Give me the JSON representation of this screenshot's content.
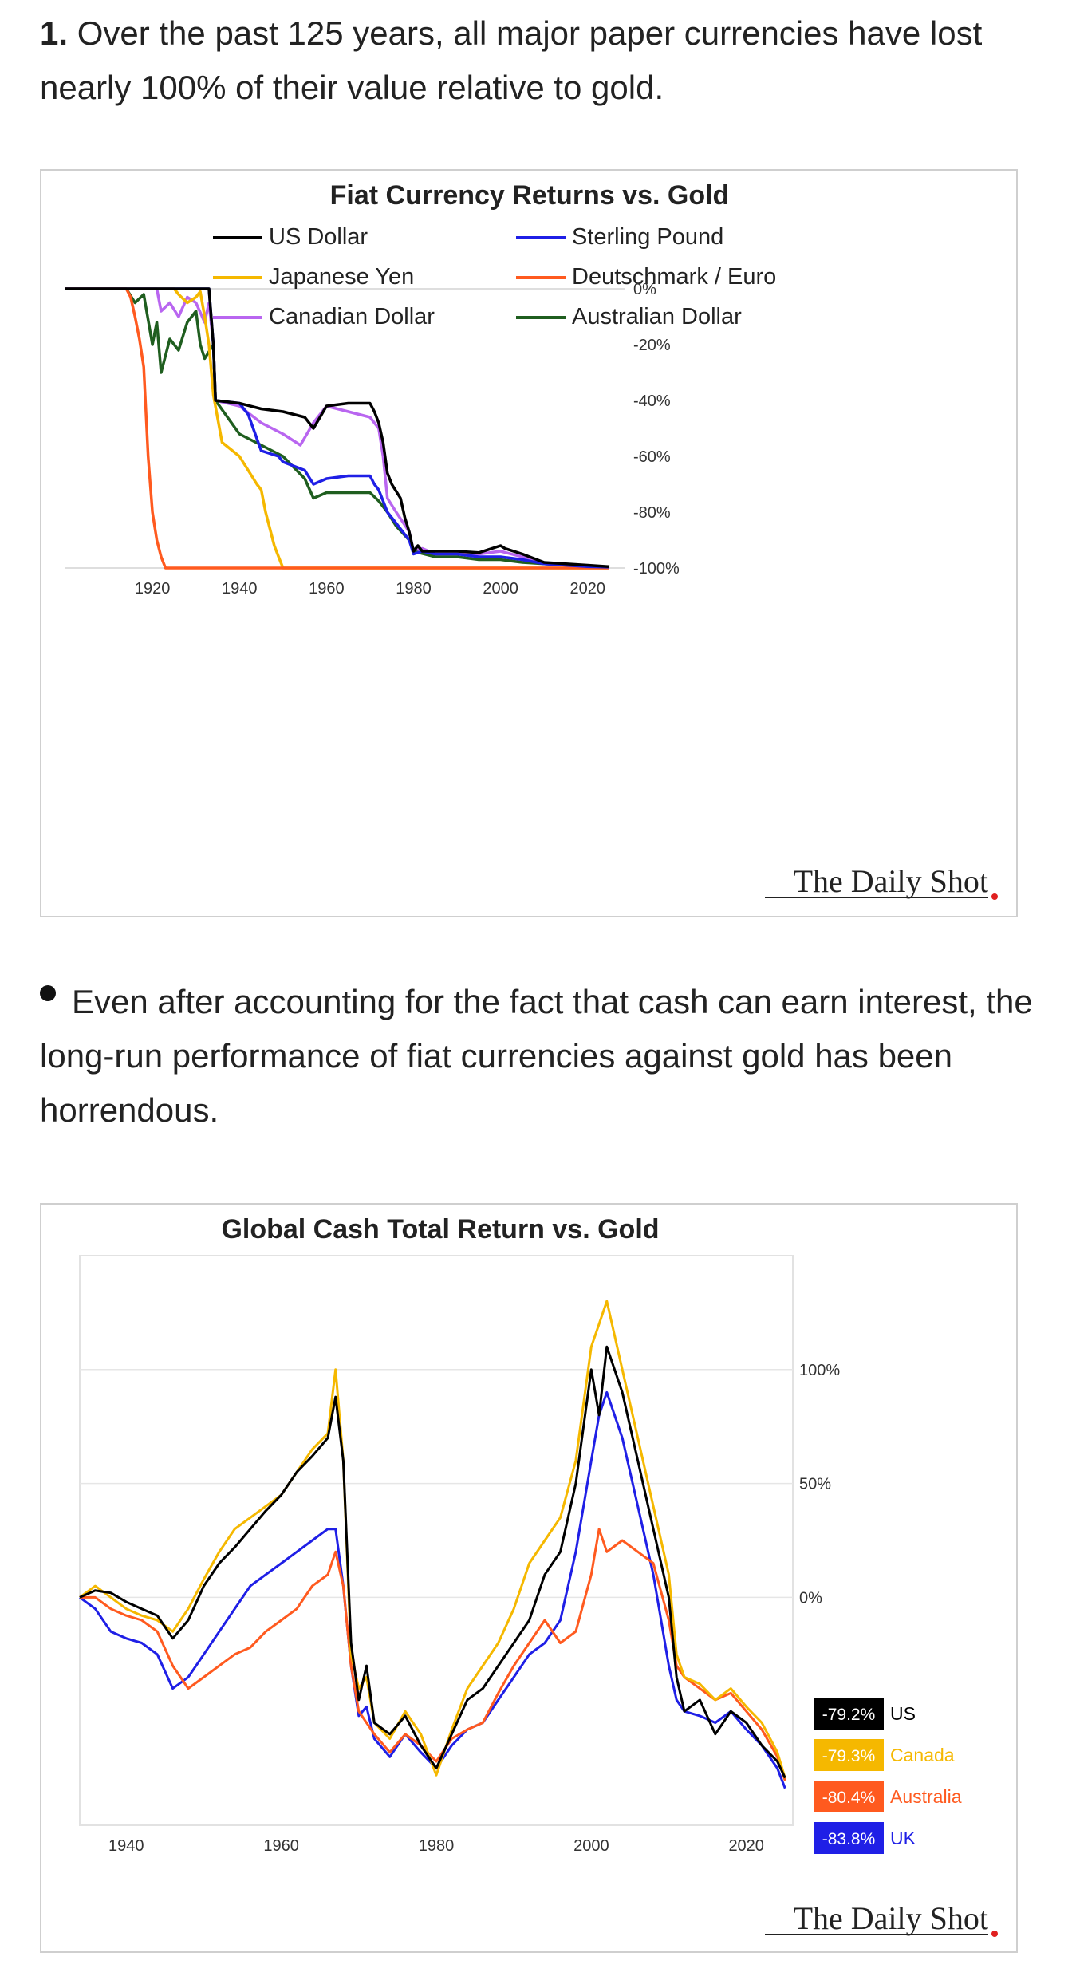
{
  "section1": {
    "number": "1.",
    "text": "Over the past 125 years, all major paper currencies have lost nearly 100% of their value relative to gold."
  },
  "section2": {
    "text": "Even after accounting for the fact that cash can earn interest, the long-run performance of fiat currencies against gold has been horrendous."
  },
  "chart_data": [
    {
      "type": "line",
      "title": "Fiat Currency Returns vs. Gold",
      "legend": [
        {
          "name": "US Dollar",
          "color": "#000000"
        },
        {
          "name": "Sterling Pound",
          "color": "#1f1fe6"
        },
        {
          "name": "Japanese Yen",
          "color": "#f5b800"
        },
        {
          "name": "Deutschmark / Euro",
          "color": "#ff5a1f"
        },
        {
          "name": "Canadian Dollar",
          "color": "#b966f0"
        },
        {
          "name": "Australian Dollar",
          "color": "#1f5e1f"
        }
      ],
      "legend_position": "top",
      "xlim": [
        1900,
        2025
      ],
      "ylim": [
        -100,
        0
      ],
      "x_ticks": [
        "1920",
        "1940",
        "1960",
        "1980",
        "2000",
        "2020"
      ],
      "x_tick_values": [
        1920,
        1940,
        1960,
        1980,
        2000,
        2020
      ],
      "y_ticks": [
        "0%",
        "-20%",
        "-40%",
        "-60%",
        "-80%",
        "-100%"
      ],
      "y_tick_values": [
        0,
        -20,
        -40,
        -60,
        -80,
        -100
      ],
      "y_axis_side": "right",
      "grid": "horizontal",
      "series": [
        {
          "name": "US Dollar",
          "color": "#000000",
          "x": [
            1900,
            1933,
            1934,
            1934.5,
            1940,
            1945,
            1950,
            1955,
            1957,
            1960,
            1965,
            1970,
            1971,
            1972,
            1973,
            1974,
            1975,
            1977,
            1978,
            1979,
            1980,
            1981,
            1982,
            1985,
            1990,
            1995,
            2000,
            2001,
            2005,
            2010,
            2015,
            2020,
            2025
          ],
          "y": [
            0,
            0,
            -20,
            -40,
            -41,
            -43,
            -44,
            -46,
            -50,
            -42,
            -41,
            -41,
            -44,
            -48,
            -55,
            -66,
            -70,
            -75,
            -82,
            -87,
            -94,
            -92,
            -94,
            -94,
            -94,
            -94.5,
            -92,
            -93,
            -95,
            -98,
            -98.5,
            -99,
            -99.5
          ]
        },
        {
          "name": "Sterling Pound",
          "color": "#1f1fe6",
          "x": [
            1900,
            1933,
            1934,
            1934.5,
            1940,
            1942,
            1945,
            1949,
            1950,
            1955,
            1957,
            1960,
            1965,
            1967,
            1970,
            1971,
            1972,
            1973,
            1974,
            1976,
            1979,
            1980,
            1982,
            1985,
            1990,
            1995,
            2000,
            2005,
            2010,
            2015,
            2020,
            2025
          ],
          "y": [
            0,
            0,
            -20,
            -40,
            -41,
            -45,
            -58,
            -60,
            -62,
            -65,
            -70,
            -68,
            -67,
            -67,
            -67,
            -70,
            -72,
            -76,
            -80,
            -84,
            -90,
            -95,
            -94,
            -95,
            -95,
            -96,
            -96,
            -97,
            -98.5,
            -99,
            -99.5,
            -99.7
          ]
        },
        {
          "name": "Japanese Yen",
          "color": "#f5b800",
          "x": [
            1900,
            1925,
            1926,
            1928,
            1930,
            1931,
            1932,
            1933,
            1934,
            1936,
            1940,
            1944,
            1945,
            1946,
            1948,
            1949,
            1950,
            1960,
            1980,
            2000,
            2025
          ],
          "y": [
            0,
            0,
            -2,
            -5,
            -3,
            -1,
            -10,
            -20,
            -38,
            -55,
            -60,
            -70,
            -72,
            -80,
            -92,
            -96,
            -100,
            -100,
            -100,
            -100,
            -100
          ]
        },
        {
          "name": "Deutschmark / Euro",
          "color": "#ff5a1f",
          "x": [
            1900,
            1914,
            1915,
            1916,
            1917,
            1918,
            1919,
            1920,
            1921,
            1922,
            1923,
            1940,
            1960,
            1980,
            2000,
            2025
          ],
          "y": [
            0,
            0,
            -3,
            -10,
            -18,
            -28,
            -60,
            -80,
            -90,
            -96,
            -100,
            -100,
            -100,
            -100,
            -100,
            -100
          ]
        },
        {
          "name": "Canadian Dollar",
          "color": "#b966f0",
          "x": [
            1900,
            1921,
            1922,
            1924,
            1926,
            1928,
            1930,
            1932,
            1933,
            1934,
            1934.5,
            1940,
            1945,
            1950,
            1954,
            1957,
            1960,
            1965,
            1970,
            1972,
            1973,
            1974,
            1976,
            1979,
            1980,
            1982,
            1985,
            1990,
            1995,
            2000,
            2005,
            2010,
            2015,
            2020,
            2025
          ],
          "y": [
            0,
            0,
            -8,
            -5,
            -10,
            -3,
            -5,
            -12,
            -5,
            -20,
            -40,
            -42,
            -48,
            -52,
            -56,
            -48,
            -42,
            -44,
            -46,
            -50,
            -60,
            -75,
            -80,
            -87,
            -94,
            -93,
            -95,
            -95,
            -95,
            -94,
            -96,
            -98,
            -99,
            -99.3,
            -99.6
          ]
        },
        {
          "name": "Australian Dollar",
          "color": "#1f5e1f",
          "x": [
            1900,
            1914,
            1916,
            1918,
            1920,
            1921,
            1922,
            1924,
            1926,
            1928,
            1930,
            1931,
            1932,
            1934,
            1934.5,
            1940,
            1945,
            1950,
            1955,
            1957,
            1960,
            1965,
            1970,
            1972,
            1973,
            1974,
            1976,
            1979,
            1980,
            1985,
            1990,
            1995,
            2000,
            2005,
            2010,
            2015,
            2020,
            2025
          ],
          "y": [
            0,
            0,
            -5,
            -2,
            -20,
            -12,
            -30,
            -18,
            -22,
            -12,
            -8,
            -20,
            -25,
            -20,
            -40,
            -52,
            -56,
            -60,
            -68,
            -75,
            -73,
            -73,
            -73,
            -76,
            -78,
            -80,
            -85,
            -90,
            -94,
            -96,
            -96,
            -97,
            -97,
            -98,
            -98.5,
            -99,
            -99.5,
            -99.8
          ]
        }
      ]
    },
    {
      "type": "line",
      "title": "Global Cash Total Return vs. Gold",
      "xlim": [
        1934,
        2026
      ],
      "ylim": [
        -100,
        150
      ],
      "x_ticks": [
        "1940",
        "1960",
        "1980",
        "2000",
        "2020"
      ],
      "x_tick_values": [
        1940,
        1960,
        1980,
        2000,
        2020
      ],
      "y_ticks": [
        "100%",
        "50%",
        "0%"
      ],
      "y_tick_values": [
        100,
        50,
        0
      ],
      "y_axis_side": "right",
      "grid": "horizontal",
      "end_labels": [
        {
          "value": "-79.2%",
          "label": "US",
          "color": "#000000",
          "text_color": "#000000"
        },
        {
          "value": "-79.3%",
          "label": "Canada",
          "color": "#f5b800",
          "text_color": "#f5b800"
        },
        {
          "value": "-80.4%",
          "label": "Australia",
          "color": "#ff5a1f",
          "text_color": "#ff5a1f"
        },
        {
          "value": "-83.8%",
          "label": "UK",
          "color": "#1f1fe6",
          "text_color": "#1f1fe6"
        }
      ],
      "series": [
        {
          "name": "US",
          "color": "#000000",
          "x": [
            1934,
            1936,
            1938,
            1940,
            1942,
            1944,
            1946,
            1948,
            1950,
            1952,
            1954,
            1956,
            1958,
            1960,
            1962,
            1964,
            1966,
            1967,
            1968,
            1969,
            1970,
            1971,
            1972,
            1974,
            1976,
            1978,
            1980,
            1982,
            1984,
            1986,
            1988,
            1990,
            1992,
            1994,
            1996,
            1998,
            2000,
            2001,
            2002,
            2004,
            2006,
            2008,
            2010,
            2011,
            2012,
            2014,
            2016,
            2018,
            2020,
            2022,
            2024,
            2025
          ],
          "y": [
            0,
            3,
            2,
            -2,
            -5,
            -8,
            -18,
            -10,
            5,
            15,
            22,
            30,
            38,
            45,
            55,
            62,
            70,
            88,
            60,
            -20,
            -45,
            -30,
            -55,
            -60,
            -52,
            -65,
            -75,
            -60,
            -45,
            -40,
            -30,
            -20,
            -10,
            10,
            20,
            50,
            100,
            80,
            110,
            90,
            60,
            30,
            0,
            -35,
            -50,
            -45,
            -60,
            -50,
            -55,
            -65,
            -72,
            -79.2
          ]
        },
        {
          "name": "Canada",
          "color": "#f5b800",
          "x": [
            1934,
            1936,
            1938,
            1940,
            1942,
            1944,
            1946,
            1948,
            1950,
            1952,
            1954,
            1956,
            1958,
            1960,
            1962,
            1964,
            1966,
            1967,
            1968,
            1969,
            1970,
            1971,
            1972,
            1974,
            1976,
            1978,
            1980,
            1982,
            1984,
            1986,
            1988,
            1990,
            1992,
            1994,
            1996,
            1998,
            2000,
            2001,
            2002,
            2004,
            2006,
            2008,
            2010,
            2011,
            2012,
            2014,
            2016,
            2018,
            2020,
            2022,
            2024,
            2025
          ],
          "y": [
            0,
            5,
            0,
            -5,
            -8,
            -10,
            -15,
            -5,
            8,
            20,
            30,
            35,
            40,
            45,
            55,
            65,
            72,
            100,
            60,
            -25,
            -40,
            -35,
            -55,
            -62,
            -50,
            -60,
            -78,
            -58,
            -40,
            -30,
            -20,
            -5,
            15,
            25,
            35,
            60,
            110,
            120,
            130,
            100,
            70,
            40,
            10,
            -25,
            -35,
            -38,
            -45,
            -40,
            -48,
            -55,
            -68,
            -79.3
          ]
        },
        {
          "name": "Australia",
          "color": "#ff5a1f",
          "x": [
            1934,
            1936,
            1938,
            1940,
            1942,
            1944,
            1946,
            1948,
            1950,
            1952,
            1954,
            1956,
            1958,
            1960,
            1962,
            1964,
            1966,
            1967,
            1968,
            1969,
            1970,
            1971,
            1972,
            1974,
            1976,
            1978,
            1980,
            1982,
            1984,
            1986,
            1988,
            1990,
            1992,
            1994,
            1996,
            1998,
            2000,
            2001,
            2002,
            2004,
            2006,
            2008,
            2010,
            2011,
            2012,
            2014,
            2016,
            2018,
            2020,
            2022,
            2024,
            2025
          ],
          "y": [
            0,
            0,
            -5,
            -8,
            -10,
            -15,
            -30,
            -40,
            -35,
            -30,
            -25,
            -22,
            -15,
            -10,
            -5,
            5,
            10,
            20,
            5,
            -30,
            -50,
            -55,
            -60,
            -68,
            -60,
            -65,
            -72,
            -62,
            -58,
            -55,
            -42,
            -30,
            -20,
            -10,
            -20,
            -15,
            10,
            30,
            20,
            25,
            20,
            15,
            -10,
            -30,
            -35,
            -40,
            -45,
            -42,
            -50,
            -58,
            -70,
            -80.4
          ]
        },
        {
          "name": "UK",
          "color": "#1f1fe6",
          "x": [
            1934,
            1936,
            1938,
            1940,
            1942,
            1944,
            1946,
            1948,
            1950,
            1952,
            1954,
            1956,
            1958,
            1960,
            1962,
            1964,
            1966,
            1967,
            1968,
            1969,
            1970,
            1971,
            1972,
            1974,
            1976,
            1978,
            1980,
            1982,
            1984,
            1986,
            1988,
            1990,
            1992,
            1994,
            1996,
            1998,
            2000,
            2001,
            2002,
            2004,
            2006,
            2008,
            2010,
            2011,
            2012,
            2014,
            2016,
            2018,
            2020,
            2022,
            2024,
            2025
          ],
          "y": [
            0,
            -5,
            -15,
            -18,
            -20,
            -25,
            -40,
            -35,
            -25,
            -15,
            -5,
            5,
            10,
            15,
            20,
            25,
            30,
            30,
            5,
            -30,
            -52,
            -48,
            -62,
            -70,
            -60,
            -68,
            -75,
            -65,
            -58,
            -55,
            -45,
            -35,
            -25,
            -20,
            -10,
            20,
            60,
            80,
            90,
            70,
            40,
            10,
            -30,
            -45,
            -50,
            -52,
            -55,
            -50,
            -58,
            -65,
            -75,
            -83.8
          ]
        }
      ]
    }
  ],
  "logos": [
    {
      "name": "The Daily Shot"
    },
    {
      "name": "The Daily Shot"
    }
  ]
}
